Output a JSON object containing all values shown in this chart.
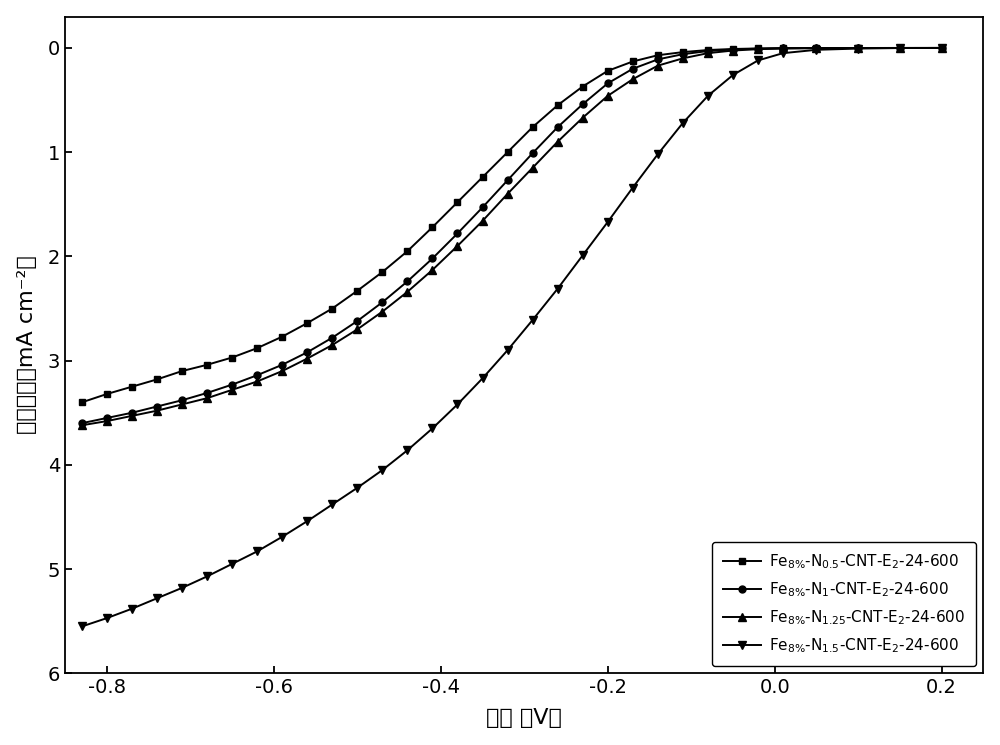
{
  "xlabel": "电势 （V）",
  "ylabel": "电流密度（mA cm⁻²）",
  "xlim": [
    -0.85,
    0.25
  ],
  "ylim": [
    -6.0,
    0.3
  ],
  "xticks": [
    -0.8,
    -0.6,
    -0.4,
    -0.2,
    0.0,
    0.2
  ],
  "yticks": [
    0,
    -1,
    -2,
    -3,
    -4,
    -5,
    -6
  ],
  "ytick_labels": [
    "0",
    "1",
    "2",
    "3",
    "4",
    "5",
    "6"
  ],
  "background_color": "#ffffff",
  "series": [
    {
      "label": "Fe$_{8\\%}$-N$_{0.5}$-CNT-E$_2$-24-600",
      "marker": "s",
      "x": [
        -0.83,
        -0.8,
        -0.77,
        -0.74,
        -0.71,
        -0.68,
        -0.65,
        -0.62,
        -0.59,
        -0.56,
        -0.53,
        -0.5,
        -0.47,
        -0.44,
        -0.41,
        -0.38,
        -0.35,
        -0.32,
        -0.29,
        -0.26,
        -0.23,
        -0.2,
        -0.17,
        -0.14,
        -0.11,
        -0.08,
        -0.05,
        -0.02,
        0.01,
        0.05,
        0.1,
        0.15,
        0.2
      ],
      "y": [
        -3.4,
        -3.32,
        -3.25,
        -3.18,
        -3.1,
        -3.04,
        -2.97,
        -2.88,
        -2.77,
        -2.64,
        -2.5,
        -2.33,
        -2.15,
        -1.95,
        -1.72,
        -1.48,
        -1.24,
        -1.0,
        -0.76,
        -0.55,
        -0.37,
        -0.22,
        -0.13,
        -0.07,
        -0.04,
        -0.02,
        -0.01,
        -0.005,
        -0.002,
        -0.001,
        -0.0005,
        -0.0001,
        0.0
      ]
    },
    {
      "label": "Fe$_{8\\%}$-N$_1$-CNT-E$_2$-24-600",
      "marker": "o",
      "x": [
        -0.83,
        -0.8,
        -0.77,
        -0.74,
        -0.71,
        -0.68,
        -0.65,
        -0.62,
        -0.59,
        -0.56,
        -0.53,
        -0.5,
        -0.47,
        -0.44,
        -0.41,
        -0.38,
        -0.35,
        -0.32,
        -0.29,
        -0.26,
        -0.23,
        -0.2,
        -0.17,
        -0.14,
        -0.11,
        -0.08,
        -0.05,
        -0.02,
        0.01,
        0.05,
        0.1,
        0.15,
        0.2
      ],
      "y": [
        -3.6,
        -3.55,
        -3.5,
        -3.44,
        -3.38,
        -3.31,
        -3.23,
        -3.14,
        -3.04,
        -2.92,
        -2.78,
        -2.62,
        -2.44,
        -2.24,
        -2.02,
        -1.78,
        -1.53,
        -1.27,
        -1.01,
        -0.76,
        -0.54,
        -0.34,
        -0.2,
        -0.11,
        -0.06,
        -0.03,
        -0.015,
        -0.007,
        -0.003,
        -0.001,
        -0.0005,
        -0.0001,
        0.0
      ]
    },
    {
      "label": "Fe$_{8\\%}$-N$_{1.25}$-CNT-E$_2$-24-600",
      "marker": "^",
      "x": [
        -0.83,
        -0.8,
        -0.77,
        -0.74,
        -0.71,
        -0.68,
        -0.65,
        -0.62,
        -0.59,
        -0.56,
        -0.53,
        -0.5,
        -0.47,
        -0.44,
        -0.41,
        -0.38,
        -0.35,
        -0.32,
        -0.29,
        -0.26,
        -0.23,
        -0.2,
        -0.17,
        -0.14,
        -0.11,
        -0.08,
        -0.05,
        -0.02,
        0.01,
        0.05,
        0.1,
        0.15,
        0.2
      ],
      "y": [
        -3.62,
        -3.58,
        -3.53,
        -3.48,
        -3.42,
        -3.36,
        -3.28,
        -3.2,
        -3.1,
        -2.98,
        -2.85,
        -2.7,
        -2.53,
        -2.34,
        -2.13,
        -1.9,
        -1.66,
        -1.4,
        -1.15,
        -0.9,
        -0.67,
        -0.46,
        -0.3,
        -0.17,
        -0.1,
        -0.05,
        -0.025,
        -0.012,
        -0.005,
        -0.002,
        -0.001,
        -0.0003,
        0.0
      ]
    },
    {
      "label": "Fe$_{8\\%}$-N$_{1.5}$-CNT-E$_2$-24-600",
      "marker": "v",
      "x": [
        -0.83,
        -0.8,
        -0.77,
        -0.74,
        -0.71,
        -0.68,
        -0.65,
        -0.62,
        -0.59,
        -0.56,
        -0.53,
        -0.5,
        -0.47,
        -0.44,
        -0.41,
        -0.38,
        -0.35,
        -0.32,
        -0.29,
        -0.26,
        -0.23,
        -0.2,
        -0.17,
        -0.14,
        -0.11,
        -0.08,
        -0.05,
        -0.02,
        0.01,
        0.05,
        0.1,
        0.15,
        0.2
      ],
      "y": [
        -5.55,
        -5.47,
        -5.38,
        -5.28,
        -5.18,
        -5.07,
        -4.95,
        -4.83,
        -4.69,
        -4.54,
        -4.38,
        -4.22,
        -4.05,
        -3.86,
        -3.65,
        -3.42,
        -3.17,
        -2.9,
        -2.61,
        -2.31,
        -1.99,
        -1.67,
        -1.34,
        -1.02,
        -0.72,
        -0.46,
        -0.26,
        -0.12,
        -0.05,
        -0.018,
        -0.006,
        -0.001,
        0.0
      ]
    }
  ],
  "font_size": 16,
  "tick_font_size": 14,
  "marker_size_s": 5,
  "marker_size_o": 5,
  "marker_size_tri": 6,
  "marker_size_v": 6,
  "linewidth": 1.4
}
